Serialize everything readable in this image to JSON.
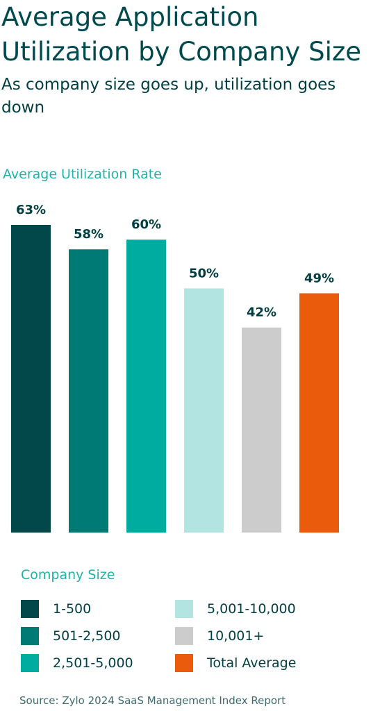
{
  "title": "Average Application Utilization by Company Size",
  "subtitle": "As company size goes up, utilization goes down",
  "chart_data": {
    "type": "bar",
    "ylabel": "Average Utilization Rate",
    "ylim": [
      0,
      63
    ],
    "grid": false,
    "legend_title": "Company Size",
    "legend_position": "bottom",
    "categories": [
      "1-500",
      "501-2,500",
      "2,501-5,000",
      "5,001-10,000",
      "10,001+",
      "Total Average"
    ],
    "values": [
      63,
      58,
      60,
      50,
      42,
      49
    ],
    "labels": [
      "63%",
      "58%",
      "60%",
      "50%",
      "42%",
      "49%"
    ],
    "colors": [
      "#02474a",
      "#007a74",
      "#00aca0",
      "#b2e4e2",
      "#cccccc",
      "#ea5c0c"
    ]
  },
  "source": "Source: Zylo 2024 SaaS Management Index Report"
}
